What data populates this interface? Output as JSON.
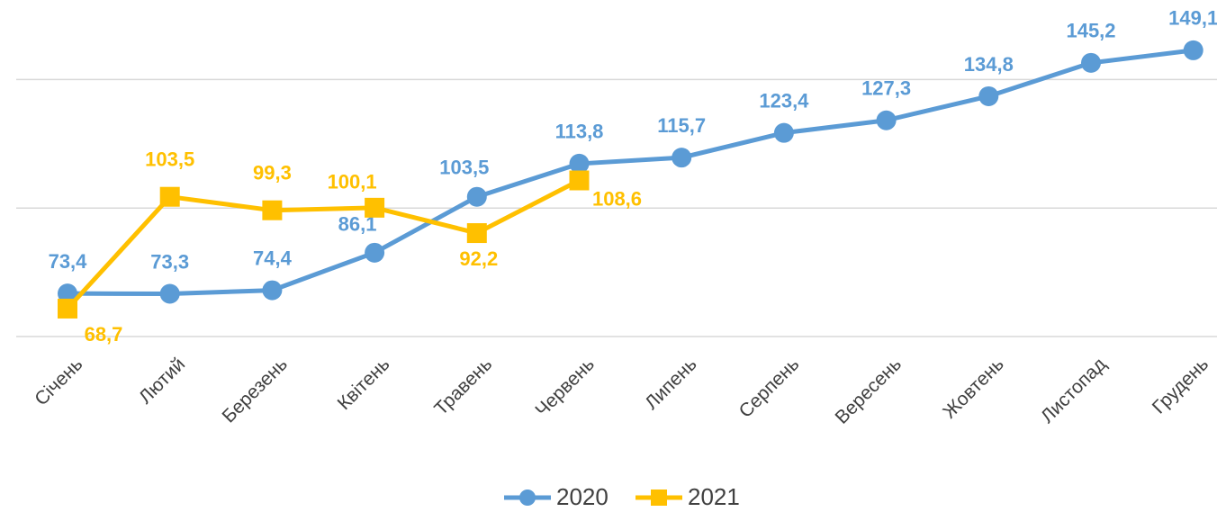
{
  "chart_data": {
    "type": "line",
    "categories": [
      "Січень",
      "Лютий",
      "Березень",
      "Квітень",
      "Травень",
      "Червень",
      "Липень",
      "Серпень",
      "Вересень",
      "Жовтень",
      "Листопад",
      "Грудень"
    ],
    "series": [
      {
        "name": "2020",
        "color": "#5b9bd5",
        "marker": "circle",
        "values": [
          73.4,
          73.3,
          74.4,
          86.1,
          103.5,
          113.8,
          115.7,
          123.4,
          127.3,
          134.8,
          145.2,
          149.1
        ],
        "value_labels": [
          "73,4",
          "73,3",
          "74,4",
          "86,1",
          "103,5",
          "113,8",
          "115,7",
          "123,4",
          "127,3",
          "134,8",
          "145,2",
          "149,1"
        ]
      },
      {
        "name": "2021",
        "color": "#ffc000",
        "marker": "square",
        "values": [
          68.7,
          103.5,
          99.3,
          100.1,
          92.2,
          108.6,
          null,
          null,
          null,
          null,
          null,
          null
        ],
        "value_labels": [
          "68,7",
          "103,5",
          "99,3",
          "100,1",
          "92,2",
          "108,6",
          null,
          null,
          null,
          null,
          null,
          null
        ]
      }
    ],
    "ylim": [
      60,
      160
    ],
    "yticks": [
      60,
      100,
      140
    ],
    "grid": true,
    "legend": "bottom"
  }
}
